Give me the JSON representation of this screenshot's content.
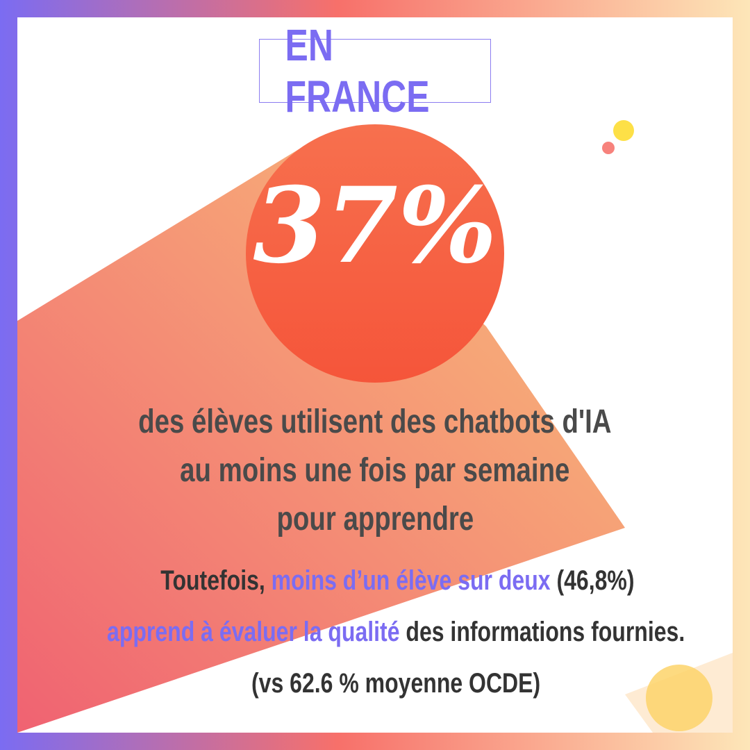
{
  "header": {
    "title": "EN FRANCE"
  },
  "stat": {
    "value": "37%"
  },
  "description": {
    "lines": [
      "des élèves utilisent des chatbots d'IA",
      "au moins une fois par semaine",
      "pour apprendre"
    ]
  },
  "note": {
    "line1": [
      "Toutefois, ",
      "moins d’un élève sur deux",
      " (46,8%)"
    ],
    "line2": [
      "apprend à évaluer la qualité",
      " des informations fournies."
    ],
    "line3": "(vs 62.6 % moyenne OCDE)"
  }
}
